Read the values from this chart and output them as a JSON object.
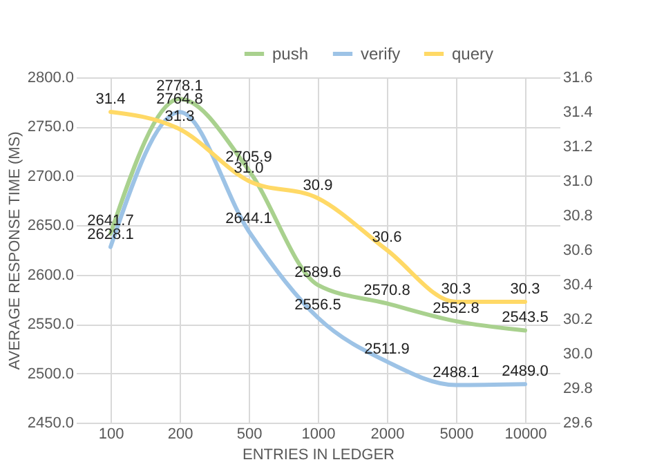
{
  "chart_data": {
    "type": "line",
    "xlabel": "ENTRIES IN LEDGER",
    "ylabel": "AVERAGE RESPONSE TIME (MS)",
    "categories": [
      "100",
      "200",
      "500",
      "1000",
      "2000",
      "5000",
      "10000"
    ],
    "series": [
      {
        "name": "push",
        "color": "#a9d18e",
        "values": [
          2641.7,
          2778.1,
          2705.9,
          2589.6,
          2570.8,
          2552.8,
          2543.5
        ],
        "value_labels": [
          "2641.7",
          "2778.1",
          "2705.9",
          "2589.6",
          "2570.8",
          "2552.8",
          "2543.5"
        ]
      },
      {
        "name": "verify",
        "color": "#9dc3e6",
        "values": [
          2628.1,
          2764.8,
          2644.1,
          2556.5,
          2511.9,
          2488.1,
          2489.0
        ],
        "value_labels": [
          "2628.1",
          "2764.8",
          "2644.1",
          "2556.5",
          "2511.9",
          "2488.1",
          "2489.0"
        ]
      },
      {
        "name": "query",
        "color": "#ffd966",
        "axis": "y2",
        "values": [
          31.4,
          31.3,
          31.0,
          30.9,
          30.6,
          30.3,
          30.3
        ],
        "value_labels": [
          "31.4",
          "31.3",
          "31.0",
          "30.9",
          "30.6",
          "30.3",
          "30.3"
        ]
      }
    ],
    "ylim": [
      2450,
      2800
    ],
    "yticks": [
      {
        "value": 2450,
        "label": "2450.0"
      },
      {
        "value": 2500,
        "label": "2500.0"
      },
      {
        "value": 2550,
        "label": "2550.0"
      },
      {
        "value": 2600,
        "label": "2600.0"
      },
      {
        "value": 2650,
        "label": "2650.0"
      },
      {
        "value": 2700,
        "label": "2700.0"
      },
      {
        "value": 2750,
        "label": "2750.0"
      },
      {
        "value": 2800,
        "label": "2800.0"
      }
    ],
    "y2lim": [
      29.6,
      31.6
    ],
    "y2ticks": [
      29.6,
      29.8,
      {
        "value": 30,
        "label": "30.0"
      },
      30.2,
      30.4,
      30.6,
      30.8,
      {
        "value": 31,
        "label": "31.0"
      },
      31.2,
      31.4,
      31.6
    ],
    "data_labels": true,
    "grid": true,
    "legend": "top",
    "marker": "none",
    "line_style": "solid"
  }
}
